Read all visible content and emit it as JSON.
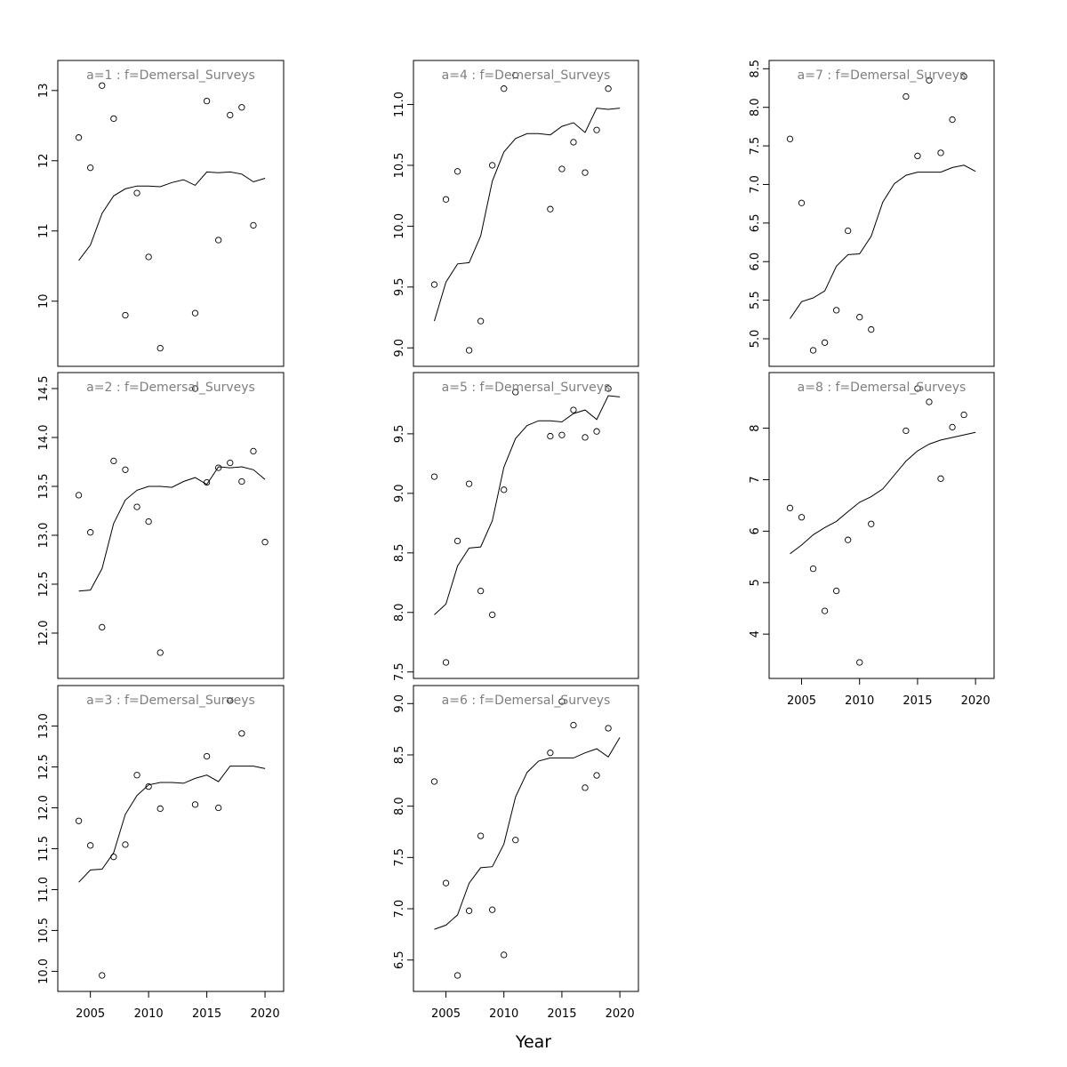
{
  "figure": {
    "xlabel": "Year"
  },
  "chart_data": [
    {
      "type": "scatter",
      "title": "a=1  :  f=Demersal_Surveys",
      "ylim": [
        9.3,
        13.2
      ],
      "yticks": [
        10,
        11,
        12,
        13
      ],
      "show_xaxis": false,
      "points": {
        "x": [
          2004,
          2005,
          2006,
          2007,
          2008,
          2009,
          2010,
          2011,
          2014,
          2015,
          2016,
          2017,
          2018,
          2019
        ],
        "y": [
          12.33,
          11.9,
          13.07,
          12.6,
          9.8,
          11.54,
          10.63,
          9.33,
          9.83,
          12.85,
          10.87,
          12.65,
          12.76,
          11.08
        ]
      },
      "line": {
        "x": [
          2004,
          2005,
          2006,
          2007,
          2008,
          2009,
          2010,
          2011,
          2012,
          2013,
          2014,
          2015,
          2016,
          2017,
          2018,
          2019,
          2020
        ],
        "y": [
          10.58,
          10.8,
          11.25,
          11.5,
          11.6,
          11.64,
          11.64,
          11.63,
          11.69,
          11.73,
          11.65,
          11.84,
          11.83,
          11.84,
          11.81,
          11.7,
          11.75
        ]
      }
    },
    {
      "type": "scatter",
      "title": "a=2  :  f=Demersal_Surveys",
      "ylim": [
        11.7,
        14.5
      ],
      "yticks": [
        12.0,
        12.5,
        13.0,
        13.5,
        14.0,
        14.5
      ],
      "show_xaxis": false,
      "points": {
        "x": [
          2004,
          2005,
          2006,
          2007,
          2008,
          2009,
          2010,
          2011,
          2014,
          2015,
          2016,
          2017,
          2018,
          2019,
          2020
        ],
        "y": [
          13.41,
          13.03,
          12.06,
          13.76,
          13.67,
          13.29,
          13.14,
          11.8,
          14.5,
          13.54,
          13.69,
          13.74,
          13.55,
          13.86,
          12.93
        ]
      },
      "line": {
        "x": [
          2004,
          2005,
          2006,
          2007,
          2008,
          2009,
          2010,
          2011,
          2012,
          2013,
          2014,
          2015,
          2016,
          2017,
          2018,
          2019,
          2020
        ],
        "y": [
          12.43,
          12.44,
          12.66,
          13.12,
          13.36,
          13.46,
          13.5,
          13.5,
          13.49,
          13.55,
          13.59,
          13.52,
          13.7,
          13.69,
          13.7,
          13.67,
          13.57
        ]
      }
    },
    {
      "type": "scatter",
      "title": "a=3  :  f=Demersal_Surveys",
      "ylim": [
        9.95,
        13.3
      ],
      "yticks": [
        10.0,
        10.5,
        11.0,
        11.5,
        12.0,
        12.5,
        13.0
      ],
      "show_xaxis": true,
      "points": {
        "x": [
          2004,
          2005,
          2006,
          2007,
          2008,
          2009,
          2010,
          2011,
          2014,
          2015,
          2016,
          2017,
          2018
        ],
        "y": [
          11.84,
          11.54,
          9.95,
          11.4,
          11.55,
          12.4,
          12.26,
          11.99,
          12.04,
          12.63,
          12.0,
          13.31,
          12.91
        ]
      },
      "line": {
        "x": [
          2004,
          2005,
          2006,
          2007,
          2008,
          2009,
          2010,
          2011,
          2012,
          2013,
          2014,
          2015,
          2016,
          2017,
          2018,
          2019,
          2020
        ],
        "y": [
          11.09,
          11.24,
          11.25,
          11.45,
          11.92,
          12.15,
          12.28,
          12.31,
          12.31,
          12.3,
          12.36,
          12.4,
          12.32,
          12.51,
          12.51,
          12.51,
          12.48
        ]
      }
    },
    {
      "type": "scatter",
      "title": "a=4  :  f=Demersal_Surveys",
      "ylim": [
        8.98,
        11.23
      ],
      "yticks": [
        9.0,
        9.5,
        10.0,
        10.5,
        11.0
      ],
      "show_xaxis": false,
      "points": {
        "x": [
          2004,
          2005,
          2006,
          2007,
          2008,
          2009,
          2010,
          2011,
          2014,
          2015,
          2016,
          2017,
          2018,
          2019
        ],
        "y": [
          9.52,
          10.22,
          10.45,
          8.98,
          9.22,
          10.5,
          11.13,
          11.24,
          10.14,
          10.47,
          10.69,
          10.44,
          10.79,
          11.13
        ]
      },
      "line": {
        "x": [
          2004,
          2005,
          2006,
          2007,
          2008,
          2009,
          2010,
          2011,
          2012,
          2013,
          2014,
          2015,
          2016,
          2017,
          2018,
          2019,
          2020
        ],
        "y": [
          9.22,
          9.54,
          9.69,
          9.7,
          9.92,
          10.37,
          10.61,
          10.72,
          10.76,
          10.76,
          10.75,
          10.82,
          10.85,
          10.77,
          10.97,
          10.96,
          10.97
        ]
      }
    },
    {
      "type": "scatter",
      "title": "a=5  :  f=Demersal_Surveys",
      "ylim": [
        7.58,
        9.88
      ],
      "yticks": [
        7.5,
        8.0,
        8.5,
        9.0,
        9.5
      ],
      "show_xaxis": false,
      "points": {
        "x": [
          2004,
          2005,
          2006,
          2007,
          2008,
          2009,
          2010,
          2011,
          2014,
          2015,
          2016,
          2017,
          2018,
          2019
        ],
        "y": [
          9.14,
          7.58,
          8.6,
          9.08,
          8.18,
          7.98,
          9.03,
          9.85,
          9.48,
          9.49,
          9.7,
          9.47,
          9.52,
          9.88
        ]
      },
      "line": {
        "x": [
          2004,
          2005,
          2006,
          2007,
          2008,
          2009,
          2010,
          2011,
          2012,
          2013,
          2014,
          2015,
          2016,
          2017,
          2018,
          2019,
          2020
        ],
        "y": [
          7.98,
          8.07,
          8.39,
          8.54,
          8.55,
          8.77,
          9.22,
          9.46,
          9.57,
          9.61,
          9.61,
          9.6,
          9.67,
          9.7,
          9.62,
          9.82,
          9.81
        ]
      }
    },
    {
      "type": "scatter",
      "title": "a=6  :  f=Demersal_Surveys",
      "ylim": [
        6.35,
        9.02
      ],
      "yticks": [
        6.5,
        7.0,
        7.5,
        8.0,
        8.5,
        9.0
      ],
      "show_xaxis": true,
      "points": {
        "x": [
          2004,
          2005,
          2006,
          2007,
          2008,
          2009,
          2010,
          2011,
          2014,
          2015,
          2016,
          2017,
          2018,
          2019
        ],
        "y": [
          8.24,
          7.25,
          6.35,
          6.98,
          7.71,
          6.99,
          6.55,
          7.67,
          8.52,
          9.02,
          8.79,
          8.18,
          8.3,
          8.76
        ]
      },
      "line": {
        "x": [
          2004,
          2005,
          2006,
          2007,
          2008,
          2009,
          2010,
          2011,
          2012,
          2013,
          2014,
          2015,
          2016,
          2017,
          2018,
          2019,
          2020
        ],
        "y": [
          6.8,
          6.84,
          6.94,
          7.25,
          7.4,
          7.41,
          7.63,
          8.09,
          8.33,
          8.44,
          8.47,
          8.47,
          8.47,
          8.52,
          8.56,
          8.48,
          8.67
        ]
      }
    },
    {
      "type": "scatter",
      "title": "a=7  :  f=Demersal_Surveys",
      "ylim": [
        4.85,
        8.4
      ],
      "yticks": [
        5.0,
        5.5,
        6.0,
        6.5,
        7.0,
        7.5,
        8.0,
        8.5
      ],
      "show_xaxis": false,
      "points": {
        "x": [
          2004,
          2005,
          2006,
          2007,
          2008,
          2009,
          2010,
          2011,
          2014,
          2015,
          2016,
          2017,
          2018,
          2019
        ],
        "y": [
          7.59,
          6.76,
          4.85,
          4.95,
          5.37,
          6.4,
          5.28,
          5.12,
          8.14,
          7.37,
          8.35,
          7.41,
          7.84,
          8.4
        ]
      },
      "line": {
        "x": [
          2004,
          2005,
          2006,
          2007,
          2008,
          2009,
          2010,
          2011,
          2012,
          2013,
          2014,
          2015,
          2016,
          2017,
          2018,
          2019,
          2020
        ],
        "y": [
          5.26,
          5.48,
          5.53,
          5.62,
          5.94,
          6.09,
          6.1,
          6.33,
          6.77,
          7.01,
          7.12,
          7.16,
          7.16,
          7.16,
          7.22,
          7.25,
          7.17
        ]
      }
    },
    {
      "type": "scatter",
      "title": "a=8  :  f=Demersal_Surveys",
      "ylim": [
        3.45,
        8.77
      ],
      "yticks": [
        4,
        5,
        6,
        7,
        8
      ],
      "show_xaxis": true,
      "points": {
        "x": [
          2004,
          2005,
          2006,
          2007,
          2008,
          2009,
          2010,
          2011,
          2014,
          2015,
          2016,
          2017,
          2018,
          2019
        ],
        "y": [
          6.45,
          6.27,
          5.27,
          4.45,
          4.84,
          5.83,
          3.45,
          6.14,
          7.95,
          8.77,
          8.51,
          7.02,
          8.02,
          8.26
        ]
      },
      "line": {
        "x": [
          2004,
          2005,
          2006,
          2007,
          2008,
          2009,
          2010,
          2011,
          2012,
          2013,
          2014,
          2015,
          2016,
          2017,
          2018,
          2019,
          2020
        ],
        "y": [
          5.56,
          5.73,
          5.93,
          6.07,
          6.19,
          6.38,
          6.56,
          6.67,
          6.82,
          7.09,
          7.36,
          7.56,
          7.69,
          7.77,
          7.82,
          7.87,
          7.92
        ]
      }
    }
  ],
  "x_axis": {
    "xlim": [
      2002.2,
      2021.6
    ],
    "ticks": [
      2005,
      2010,
      2015,
      2020
    ]
  }
}
